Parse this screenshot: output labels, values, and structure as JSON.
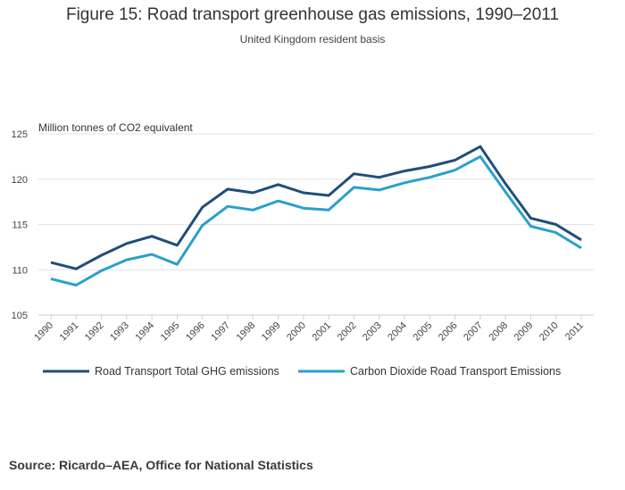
{
  "chart_data": {
    "type": "line",
    "title": "Figure 15: Road transport greenhouse gas emissions, 1990–2011",
    "subtitle": "United Kingdom resident basis",
    "ylabel": "Million tonnes of CO2 equivalent",
    "xlabel": "",
    "ylim": [
      105,
      125
    ],
    "yticks": [
      105,
      110,
      115,
      120,
      125
    ],
    "grid": true,
    "legend_position": "bottom-left",
    "categories": [
      "1990",
      "1991",
      "1992",
      "1993",
      "1994",
      "1995",
      "1996",
      "1997",
      "1998",
      "1999",
      "2000",
      "2001",
      "2002",
      "2003",
      "2004",
      "2005",
      "2006",
      "2007",
      "2008",
      "2009",
      "2010",
      "2011"
    ],
    "series": [
      {
        "name": "Road Transport Total GHG emissions",
        "color": "#1f4e79",
        "values": [
          110.8,
          110.1,
          111.6,
          112.9,
          113.7,
          112.7,
          116.9,
          118.9,
          118.5,
          119.4,
          118.5,
          118.2,
          120.6,
          120.2,
          120.9,
          121.4,
          122.1,
          123.6,
          119.5,
          115.7,
          115.0,
          113.3
        ]
      },
      {
        "name": "Carbon Dioxide Road Transport Emissions",
        "color": "#2aa0cd",
        "values": [
          109.0,
          108.3,
          109.9,
          111.1,
          111.7,
          110.6,
          114.9,
          117.0,
          116.6,
          117.6,
          116.8,
          116.6,
          119.1,
          118.8,
          119.6,
          120.2,
          121.0,
          122.5,
          118.6,
          114.8,
          114.1,
          112.4
        ]
      }
    ]
  },
  "source": "Source: Ricardo–AEA, Office for National Statistics"
}
